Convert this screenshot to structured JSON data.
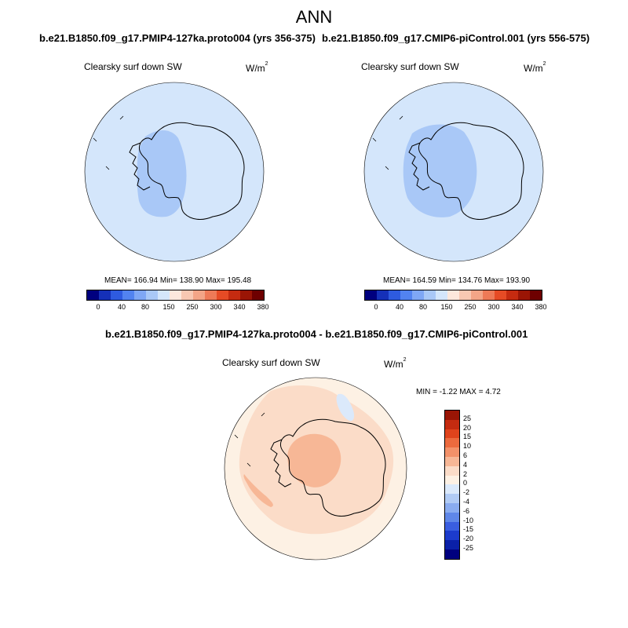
{
  "figure_title": "ANN",
  "panels": [
    {
      "case_title": "b.e21.B1850.f09_g17.PMIP4-127ka.proto004 (yrs 356-375)",
      "variable": "Clearsky surf down SW",
      "units_base": "W/m",
      "units_exp": "2",
      "stats": "MEAN= 166.94  Min= 138.90  Max= 195.48"
    },
    {
      "case_title": "b.e21.B1850.f09_g17.CMIP6-piControl.001 (yrs 556-575)",
      "variable": "Clearsky surf down SW",
      "units_base": "W/m",
      "units_exp": "2",
      "stats": "MEAN= 164.59  Min= 134.76  Max= 193.90"
    },
    {
      "case_title": "b.e21.B1850.f09_g17.PMIP4-127ka.proto004 - b.e21.B1850.f09_g17.CMIP6-piControl.001",
      "variable": "Clearsky surf down SW",
      "units_base": "W/m",
      "units_exp": "2",
      "stats": "MIN =  -1.22 MAX =   4.72"
    }
  ],
  "colorbar_abs": {
    "colors": [
      "#00007f",
      "#1530b8",
      "#2e5be0",
      "#5283f0",
      "#7fa7f5",
      "#a9c8f7",
      "#d4e6fb",
      "#fde8dc",
      "#f8c8b2",
      "#f3a587",
      "#ee7a57",
      "#e64b25",
      "#c52b10",
      "#9a1505",
      "#6e0000"
    ],
    "tick_labels": [
      "0",
      "40",
      "80",
      "150",
      "250",
      "300",
      "340",
      "380"
    ]
  },
  "colorbar_diff": {
    "colors": [
      "#9a1505",
      "#c52b10",
      "#e0431c",
      "#ec6a3e",
      "#f39169",
      "#f7b796",
      "#fbdcc8",
      "#fdf1e4",
      "#dbe9fb",
      "#b1cbf5",
      "#8aacf0",
      "#5f87e8",
      "#3a5ee0",
      "#1c3bcc",
      "#0a20a8",
      "#00007f"
    ],
    "tick_labels": [
      "25",
      "20",
      "15",
      "10",
      "6",
      "4",
      "2",
      "0",
      "-2",
      "-4",
      "-6",
      "-10",
      "-15",
      "-20",
      "-25"
    ]
  },
  "map_colors": {
    "abs_background": "#d4e6fb",
    "abs_low": "#a9c8f7",
    "diff_background": "#fdf1e4",
    "diff_pos_small": "#fbdcc8",
    "diff_pos_mid": "#f7b796",
    "diff_neg_small": "#dbe9fb"
  }
}
